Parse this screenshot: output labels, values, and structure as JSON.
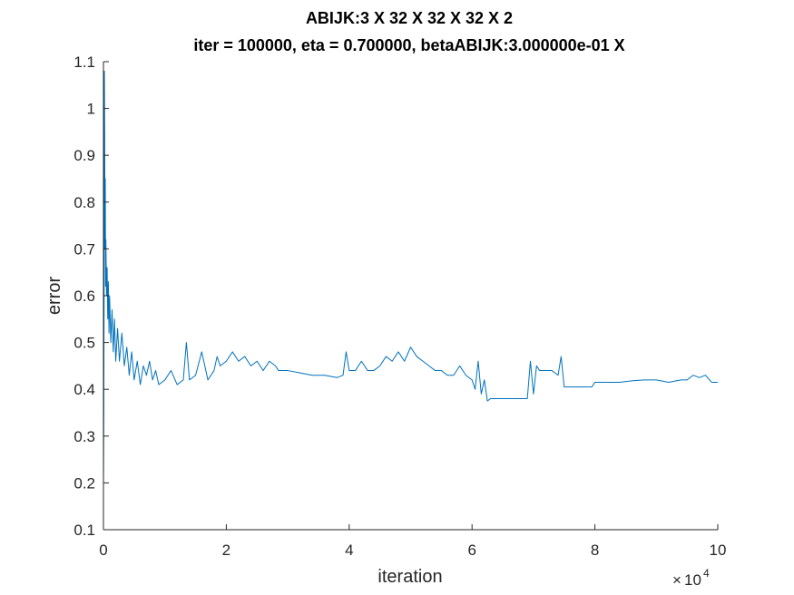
{
  "chart_data": {
    "type": "line",
    "title": "ABIJK:3 X 32 X 32 X 32 X 2",
    "subtitle": "iter = 100000, eta = 0.700000, betaABIJK:3.000000e-01 X",
    "xlabel": "iteration",
    "ylabel": "error",
    "xlim": [
      0,
      100000
    ],
    "ylim": [
      0.1,
      1.1
    ],
    "x_exponent": "10",
    "x_exponent_power": "4",
    "x_exponent_prefix": "×",
    "xticks": [
      0,
      20000,
      40000,
      60000,
      80000,
      100000
    ],
    "xtick_labels": [
      "0",
      "2",
      "4",
      "6",
      "8",
      "10"
    ],
    "yticks": [
      0.1,
      0.2,
      0.3,
      0.4,
      0.5,
      0.6,
      0.7,
      0.8,
      0.9,
      1.0,
      1.1
    ],
    "ytick_labels": [
      "0.1",
      "0.2",
      "0.3",
      "0.4",
      "0.5",
      "0.6",
      "0.7",
      "0.8",
      "0.9",
      "1",
      "1.1"
    ],
    "grid": false,
    "legend": "none",
    "series": [
      {
        "color": "#0072BD",
        "x": [
          0,
          50,
          100,
          150,
          200,
          250,
          300,
          350,
          400,
          500,
          600,
          700,
          800,
          900,
          1000,
          1200,
          1400,
          1600,
          1800,
          2000,
          2300,
          2600,
          3000,
          3400,
          3800,
          4200,
          4600,
          5000,
          5500,
          6000,
          6500,
          7000,
          7500,
          8000,
          8500,
          9000,
          10000,
          11000,
          12000,
          13000,
          13500,
          14000,
          15000,
          16000,
          17000,
          18000,
          18500,
          19000,
          20000,
          21000,
          22000,
          23000,
          24000,
          25000,
          26000,
          27000,
          28000,
          28500,
          30000,
          32000,
          34000,
          36000,
          38000,
          39000,
          39500,
          40000,
          41000,
          42000,
          43000,
          44000,
          45000,
          46000,
          47000,
          48000,
          49000,
          50000,
          51000,
          52000,
          53000,
          54000,
          55000,
          56000,
          57000,
          58000,
          59000,
          60000,
          60500,
          61000,
          61500,
          62000,
          62500,
          63000,
          64000,
          65000,
          66000,
          67000,
          68000,
          69000,
          69500,
          70000,
          70500,
          71000,
          72000,
          73000,
          74000,
          74500,
          75000,
          76000,
          77000,
          78000,
          79000,
          79500,
          80000,
          82000,
          84000,
          86000,
          88000,
          90000,
          92000,
          94000,
          95000,
          96000,
          97000,
          98000,
          99000,
          100000
        ],
        "y": [
          0.2,
          0.34,
          0.6,
          1.08,
          0.95,
          0.7,
          0.85,
          0.62,
          0.72,
          0.6,
          0.66,
          0.55,
          0.63,
          0.52,
          0.6,
          0.5,
          0.57,
          0.48,
          0.55,
          0.46,
          0.53,
          0.46,
          0.52,
          0.45,
          0.49,
          0.43,
          0.48,
          0.42,
          0.46,
          0.41,
          0.45,
          0.43,
          0.46,
          0.42,
          0.44,
          0.41,
          0.42,
          0.44,
          0.41,
          0.42,
          0.5,
          0.42,
          0.43,
          0.48,
          0.42,
          0.44,
          0.47,
          0.45,
          0.46,
          0.48,
          0.46,
          0.47,
          0.45,
          0.46,
          0.44,
          0.46,
          0.45,
          0.44,
          0.44,
          0.435,
          0.43,
          0.43,
          0.425,
          0.43,
          0.48,
          0.44,
          0.44,
          0.46,
          0.44,
          0.44,
          0.45,
          0.47,
          0.46,
          0.48,
          0.46,
          0.49,
          0.47,
          0.46,
          0.45,
          0.44,
          0.44,
          0.43,
          0.43,
          0.45,
          0.43,
          0.42,
          0.4,
          0.46,
          0.39,
          0.42,
          0.375,
          0.38,
          0.38,
          0.38,
          0.38,
          0.38,
          0.38,
          0.38,
          0.46,
          0.39,
          0.45,
          0.44,
          0.44,
          0.44,
          0.43,
          0.47,
          0.405,
          0.405,
          0.405,
          0.405,
          0.405,
          0.405,
          0.415,
          0.415,
          0.415,
          0.418,
          0.42,
          0.42,
          0.415,
          0.42,
          0.42,
          0.43,
          0.425,
          0.43,
          0.415,
          0.415
        ]
      }
    ]
  }
}
